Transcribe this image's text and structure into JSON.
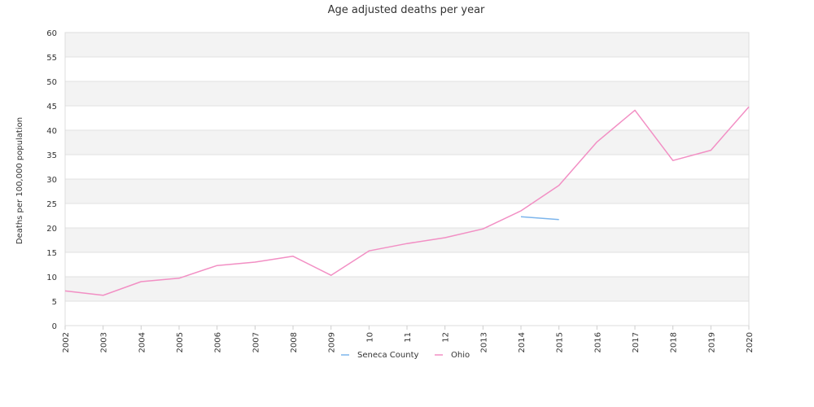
{
  "chart_data": {
    "type": "line",
    "title": "Age adjusted deaths per year",
    "xlabel": "",
    "ylabel": "Deaths per 100,000 population",
    "ylim": [
      0,
      60
    ],
    "yticks": [
      0,
      5,
      10,
      15,
      20,
      25,
      30,
      35,
      40,
      45,
      50,
      55,
      60
    ],
    "x": [
      "2002",
      "2003",
      "2004",
      "2005",
      "2006",
      "2007",
      "2008",
      "2009",
      "10",
      "11",
      "12",
      "2013",
      "2014",
      "2015",
      "2016",
      "2017",
      "2018",
      "2019",
      "2020"
    ],
    "grid": true,
    "legend_position": "bottom",
    "series": [
      {
        "name": "Seneca County",
        "color": "#7cb5ec",
        "values": [
          null,
          null,
          null,
          null,
          null,
          null,
          null,
          null,
          null,
          null,
          null,
          null,
          22.3,
          21.7,
          null,
          null,
          null,
          null,
          null
        ]
      },
      {
        "name": "Ohio",
        "color": "#f28fc4",
        "values": [
          7.1,
          6.2,
          9.0,
          9.7,
          12.3,
          13.0,
          14.2,
          10.3,
          15.3,
          16.8,
          18.0,
          19.8,
          23.5,
          28.7,
          37.6,
          44.1,
          33.8,
          35.9,
          44.8
        ]
      }
    ]
  }
}
